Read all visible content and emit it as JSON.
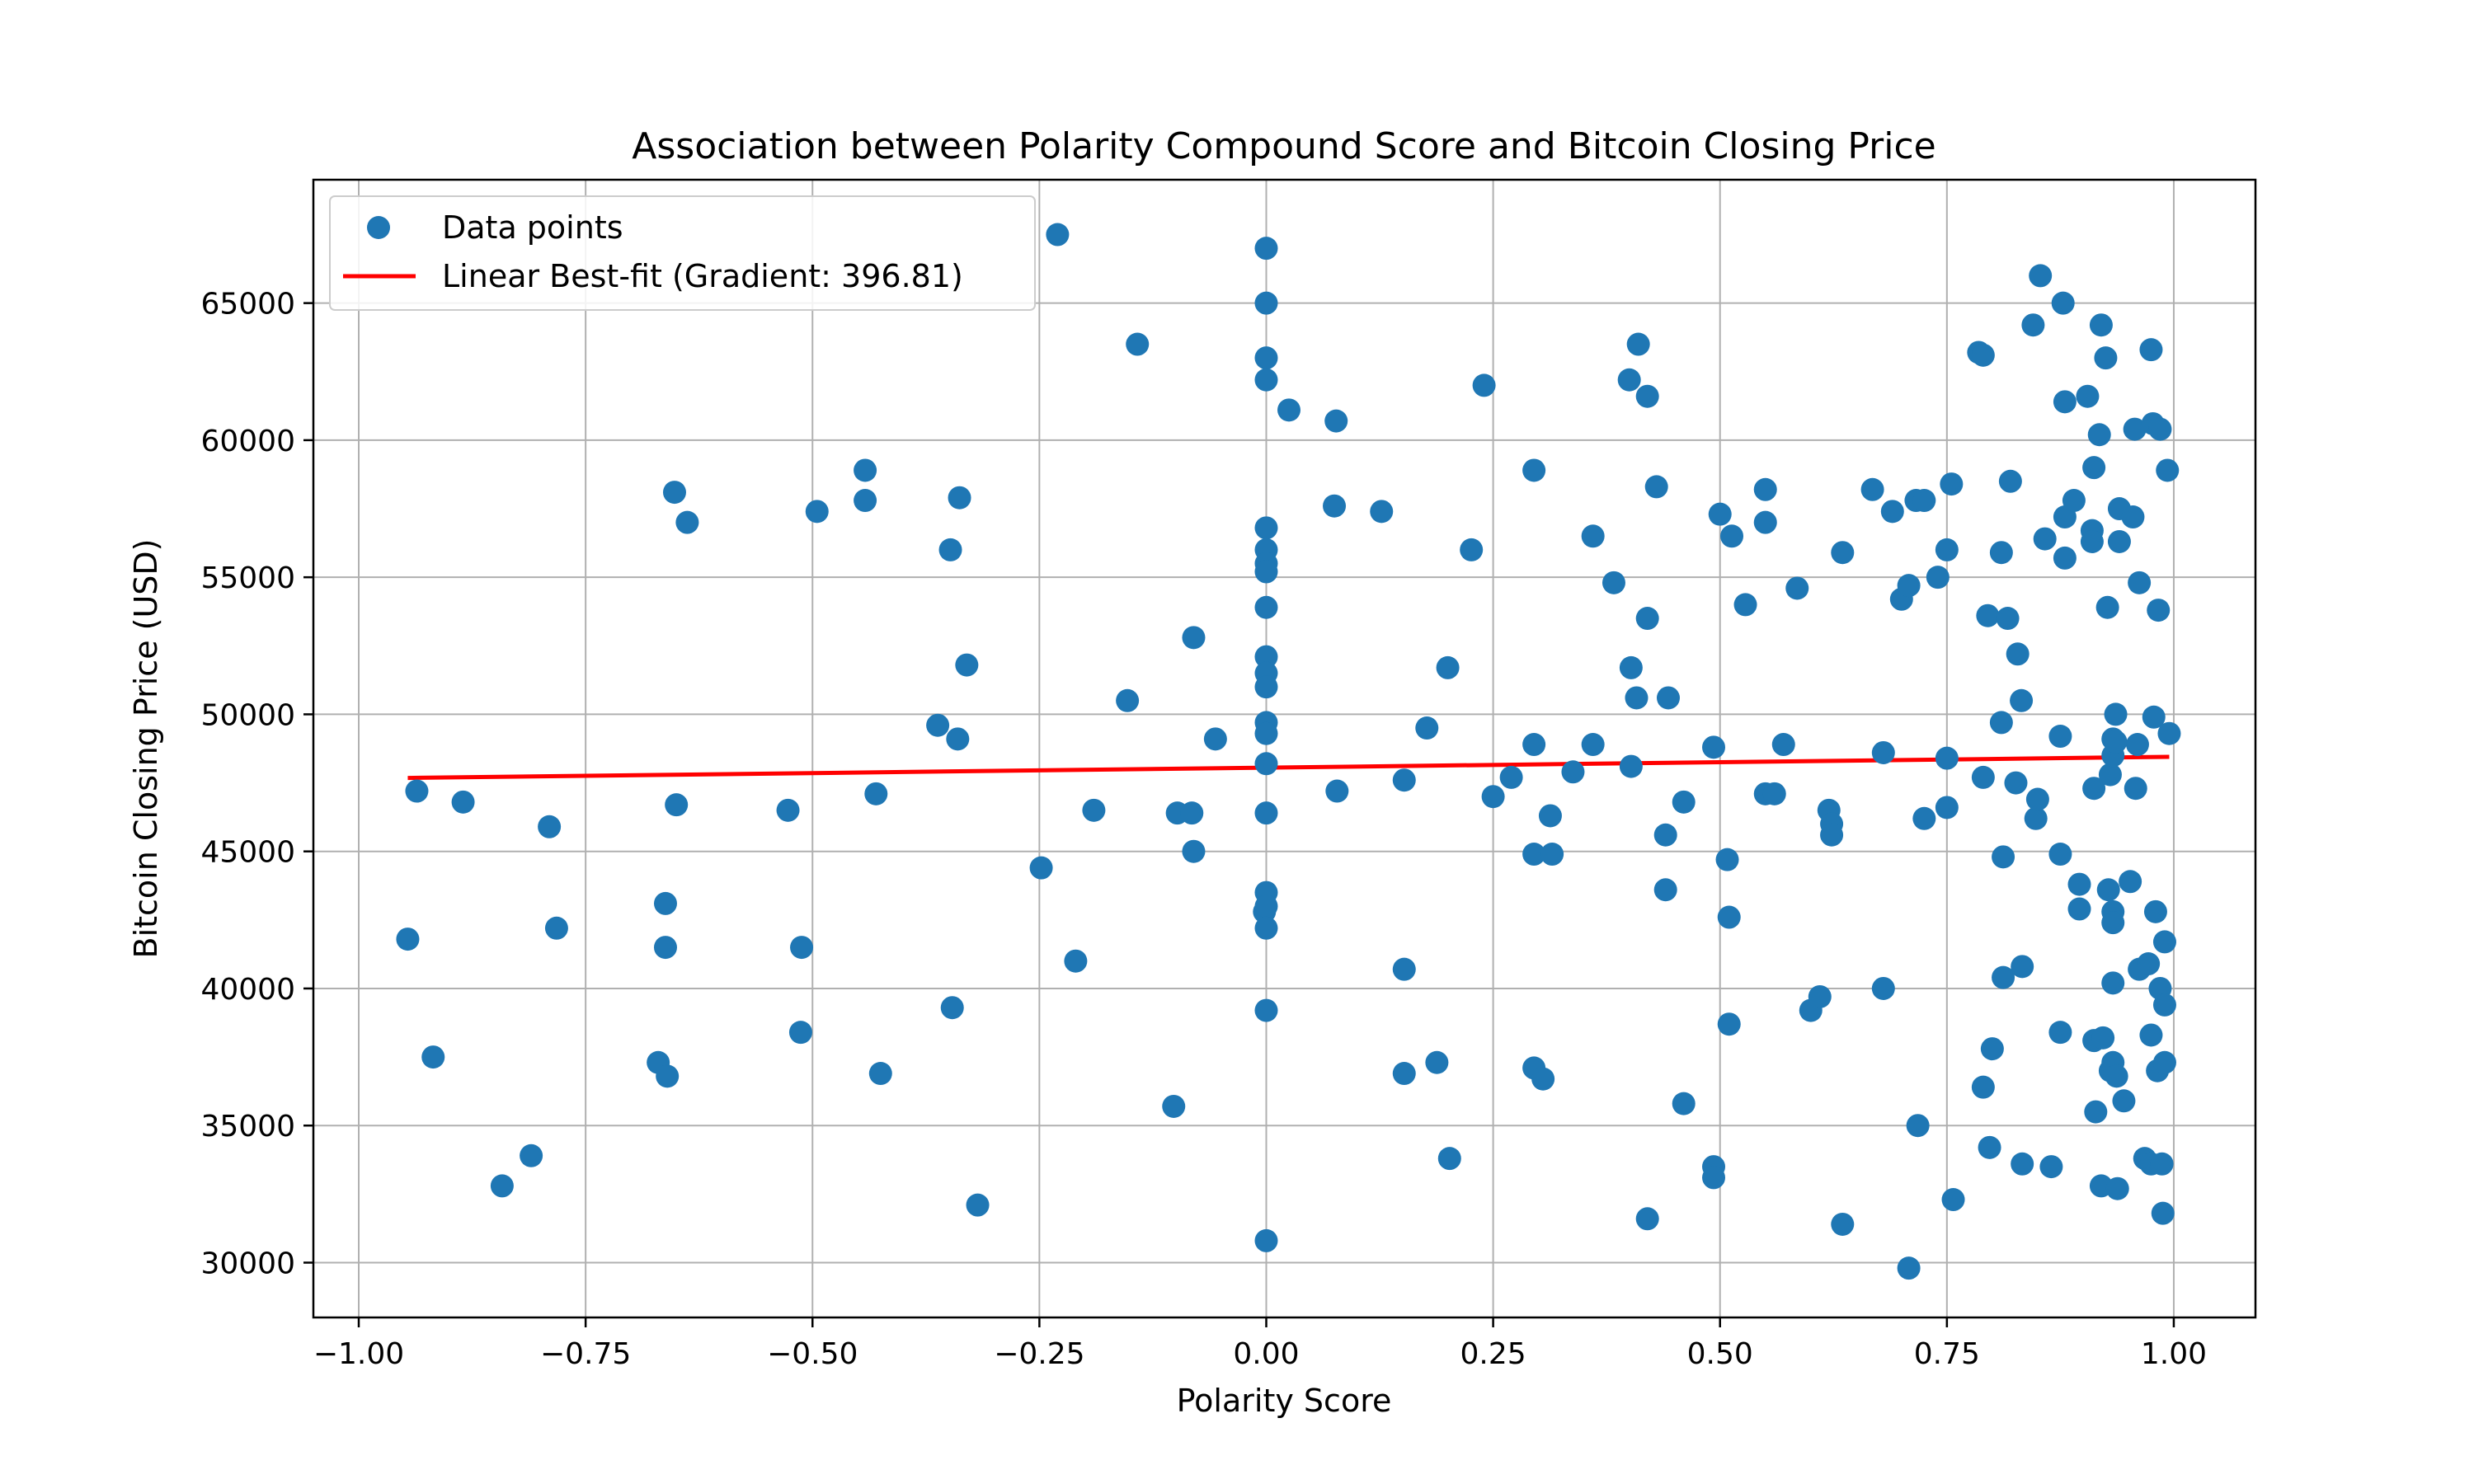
{
  "chart_data": {
    "type": "scatter",
    "title": "Association between Polarity Compound Score and Bitcoin Closing Price",
    "xlabel": "Polarity Score",
    "ylabel": "Bitcoin Closing Price (USD)",
    "xlim": [
      -1.05,
      1.09
    ],
    "ylim": [
      28000,
      69500
    ],
    "xticks": [
      -1.0,
      -0.75,
      -0.5,
      -0.25,
      0.0,
      0.25,
      0.5,
      0.75,
      1.0
    ],
    "xtick_labels": [
      "−1.00",
      "−0.75",
      "−0.50",
      "−0.25",
      "0.00",
      "0.25",
      "0.50",
      "0.75",
      "1.00"
    ],
    "yticks": [
      30000,
      35000,
      40000,
      45000,
      50000,
      55000,
      60000,
      65000
    ],
    "ytick_labels": [
      "30000",
      "35000",
      "40000",
      "45000",
      "50000",
      "55000",
      "60000",
      "65000"
    ],
    "grid": true,
    "legend_position": "top-left",
    "colors": {
      "points": "#1f77b4",
      "fit_line": "#ff0000"
    },
    "series": [
      {
        "name": "Data points",
        "kind": "scatter",
        "points": [
          [
            -0.946,
            41800
          ],
          [
            -0.936,
            47200
          ],
          [
            -0.918,
            37500
          ],
          [
            -0.885,
            46800
          ],
          [
            -0.842,
            32800
          ],
          [
            -0.81,
            33900
          ],
          [
            -0.79,
            45900
          ],
          [
            -0.782,
            42200
          ],
          [
            -0.67,
            37300
          ],
          [
            -0.662,
            43100
          ],
          [
            -0.662,
            41500
          ],
          [
            -0.66,
            36800
          ],
          [
            -0.652,
            58100
          ],
          [
            -0.65,
            46700
          ],
          [
            -0.638,
            57000
          ],
          [
            -0.527,
            46500
          ],
          [
            -0.512,
            41500
          ],
          [
            -0.513,
            38400
          ],
          [
            -0.495,
            57400
          ],
          [
            -0.442,
            58900
          ],
          [
            -0.442,
            57800
          ],
          [
            -0.43,
            47100
          ],
          [
            -0.425,
            36900
          ],
          [
            -0.362,
            49600
          ],
          [
            -0.348,
            56000
          ],
          [
            -0.346,
            39300
          ],
          [
            -0.34,
            49100
          ],
          [
            -0.338,
            57900
          ],
          [
            -0.33,
            51800
          ],
          [
            -0.318,
            32100
          ],
          [
            -0.248,
            44400
          ],
          [
            -0.23,
            67500
          ],
          [
            -0.21,
            41000
          ],
          [
            -0.19,
            46500
          ],
          [
            -0.153,
            50500
          ],
          [
            -0.142,
            63500
          ],
          [
            -0.102,
            35700
          ],
          [
            -0.098,
            46400
          ],
          [
            -0.082,
            46400
          ],
          [
            -0.08,
            45000
          ],
          [
            -0.08,
            52800
          ],
          [
            -0.056,
            49100
          ],
          [
            -0.002,
            42800
          ],
          [
            0.0,
            67000
          ],
          [
            0.0,
            65000
          ],
          [
            0.0,
            63000
          ],
          [
            0.0,
            62200
          ],
          [
            0.0,
            56800
          ],
          [
            0.0,
            56000
          ],
          [
            0.0,
            55500
          ],
          [
            0.0,
            55200
          ],
          [
            0.0,
            53900
          ],
          [
            0.0,
            52100
          ],
          [
            0.0,
            51500
          ],
          [
            0.0,
            51000
          ],
          [
            0.0,
            49700
          ],
          [
            0.0,
            49300
          ],
          [
            0.0,
            48200
          ],
          [
            0.0,
            46400
          ],
          [
            0.0,
            43500
          ],
          [
            0.0,
            43000
          ],
          [
            0.0,
            42200
          ],
          [
            0.0,
            39200
          ],
          [
            0.0,
            30800
          ],
          [
            0.025,
            61100
          ],
          [
            0.075,
            57600
          ],
          [
            0.077,
            60700
          ],
          [
            0.078,
            47200
          ],
          [
            0.127,
            57400
          ],
          [
            0.152,
            47600
          ],
          [
            0.152,
            40700
          ],
          [
            0.152,
            36900
          ],
          [
            0.177,
            49500
          ],
          [
            0.188,
            37300
          ],
          [
            0.2,
            51700
          ],
          [
            0.202,
            33800
          ],
          [
            0.226,
            56000
          ],
          [
            0.24,
            62000
          ],
          [
            0.25,
            47000
          ],
          [
            0.27,
            47700
          ],
          [
            0.295,
            58900
          ],
          [
            0.295,
            48900
          ],
          [
            0.295,
            44900
          ],
          [
            0.295,
            37100
          ],
          [
            0.305,
            36700
          ],
          [
            0.313,
            46300
          ],
          [
            0.315,
            44900
          ],
          [
            0.338,
            47900
          ],
          [
            0.36,
            56500
          ],
          [
            0.36,
            48900
          ],
          [
            0.383,
            54800
          ],
          [
            0.4,
            62200
          ],
          [
            0.402,
            51700
          ],
          [
            0.402,
            48100
          ],
          [
            0.408,
            50600
          ],
          [
            0.41,
            63500
          ],
          [
            0.42,
            61600
          ],
          [
            0.42,
            53500
          ],
          [
            0.42,
            31600
          ],
          [
            0.43,
            58300
          ],
          [
            0.44,
            45600
          ],
          [
            0.44,
            43600
          ],
          [
            0.443,
            50600
          ],
          [
            0.46,
            46800
          ],
          [
            0.46,
            35800
          ],
          [
            0.493,
            48800
          ],
          [
            0.493,
            33500
          ],
          [
            0.493,
            33100
          ],
          [
            0.5,
            57300
          ],
          [
            0.508,
            44700
          ],
          [
            0.51,
            42600
          ],
          [
            0.51,
            38700
          ],
          [
            0.513,
            56500
          ],
          [
            0.528,
            54000
          ],
          [
            0.55,
            58200
          ],
          [
            0.55,
            57000
          ],
          [
            0.55,
            47100
          ],
          [
            0.56,
            47100
          ],
          [
            0.57,
            48900
          ],
          [
            0.585,
            54600
          ],
          [
            0.6,
            39200
          ],
          [
            0.61,
            39700
          ],
          [
            0.62,
            46500
          ],
          [
            0.623,
            46000
          ],
          [
            0.623,
            45600
          ],
          [
            0.635,
            55900
          ],
          [
            0.635,
            31400
          ],
          [
            0.668,
            58200
          ],
          [
            0.68,
            48600
          ],
          [
            0.68,
            40000
          ],
          [
            0.69,
            57400
          ],
          [
            0.7,
            54200
          ],
          [
            0.708,
            54700
          ],
          [
            0.708,
            29800
          ],
          [
            0.716,
            57800
          ],
          [
            0.718,
            35000
          ],
          [
            0.725,
            57800
          ],
          [
            0.725,
            46200
          ],
          [
            0.74,
            55000
          ],
          [
            0.75,
            56000
          ],
          [
            0.75,
            48400
          ],
          [
            0.75,
            46600
          ],
          [
            0.755,
            58400
          ],
          [
            0.757,
            32300
          ],
          [
            0.785,
            63200
          ],
          [
            0.79,
            63100
          ],
          [
            0.79,
            47700
          ],
          [
            0.79,
            36400
          ],
          [
            0.795,
            53600
          ],
          [
            0.797,
            34200
          ],
          [
            0.8,
            37800
          ],
          [
            0.81,
            55900
          ],
          [
            0.81,
            49700
          ],
          [
            0.812,
            44800
          ],
          [
            0.812,
            40400
          ],
          [
            0.817,
            53500
          ],
          [
            0.82,
            58500
          ],
          [
            0.826,
            47500
          ],
          [
            0.828,
            52200
          ],
          [
            0.832,
            50500
          ],
          [
            0.833,
            40800
          ],
          [
            0.833,
            33600
          ],
          [
            0.845,
            64200
          ],
          [
            0.848,
            46200
          ],
          [
            0.85,
            46900
          ],
          [
            0.853,
            66000
          ],
          [
            0.858,
            56400
          ],
          [
            0.865,
            33500
          ],
          [
            0.875,
            49200
          ],
          [
            0.875,
            44900
          ],
          [
            0.875,
            38400
          ],
          [
            0.878,
            65000
          ],
          [
            0.88,
            61400
          ],
          [
            0.88,
            57200
          ],
          [
            0.88,
            55700
          ],
          [
            0.89,
            57800
          ],
          [
            0.896,
            43800
          ],
          [
            0.896,
            42900
          ],
          [
            0.905,
            61600
          ],
          [
            0.91,
            56700
          ],
          [
            0.91,
            56300
          ],
          [
            0.912,
            59000
          ],
          [
            0.912,
            47300
          ],
          [
            0.912,
            38100
          ],
          [
            0.914,
            35500
          ],
          [
            0.918,
            60200
          ],
          [
            0.92,
            64200
          ],
          [
            0.92,
            32800
          ],
          [
            0.922,
            38200
          ],
          [
            0.925,
            63000
          ],
          [
            0.927,
            53900
          ],
          [
            0.928,
            43600
          ],
          [
            0.93,
            47800
          ],
          [
            0.93,
            37000
          ],
          [
            0.933,
            49100
          ],
          [
            0.933,
            48500
          ],
          [
            0.933,
            42800
          ],
          [
            0.933,
            42400
          ],
          [
            0.933,
            40200
          ],
          [
            0.933,
            37300
          ],
          [
            0.936,
            50000
          ],
          [
            0.936,
            49000
          ],
          [
            0.937,
            36800
          ],
          [
            0.938,
            32700
          ],
          [
            0.94,
            57500
          ],
          [
            0.94,
            56300
          ],
          [
            0.945,
            35900
          ],
          [
            0.952,
            43900
          ],
          [
            0.955,
            57200
          ],
          [
            0.957,
            60400
          ],
          [
            0.958,
            47300
          ],
          [
            0.96,
            48900
          ],
          [
            0.962,
            54800
          ],
          [
            0.962,
            40700
          ],
          [
            0.968,
            33800
          ],
          [
            0.972,
            40900
          ],
          [
            0.975,
            63300
          ],
          [
            0.975,
            38300
          ],
          [
            0.975,
            33600
          ],
          [
            0.977,
            60600
          ],
          [
            0.978,
            49900
          ],
          [
            0.98,
            42800
          ],
          [
            0.982,
            37000
          ],
          [
            0.983,
            53800
          ],
          [
            0.985,
            60400
          ],
          [
            0.985,
            40000
          ],
          [
            0.987,
            33600
          ],
          [
            0.988,
            31800
          ],
          [
            0.99,
            41700
          ],
          [
            0.99,
            39400
          ],
          [
            0.99,
            37300
          ],
          [
            0.993,
            58900
          ],
          [
            0.995,
            49300
          ]
        ]
      },
      {
        "name": "Linear Best-fit (Gradient: 396.81)",
        "kind": "line",
        "points": [
          [
            -0.946,
            47680
          ],
          [
            0.995,
            48450
          ]
        ]
      }
    ]
  }
}
